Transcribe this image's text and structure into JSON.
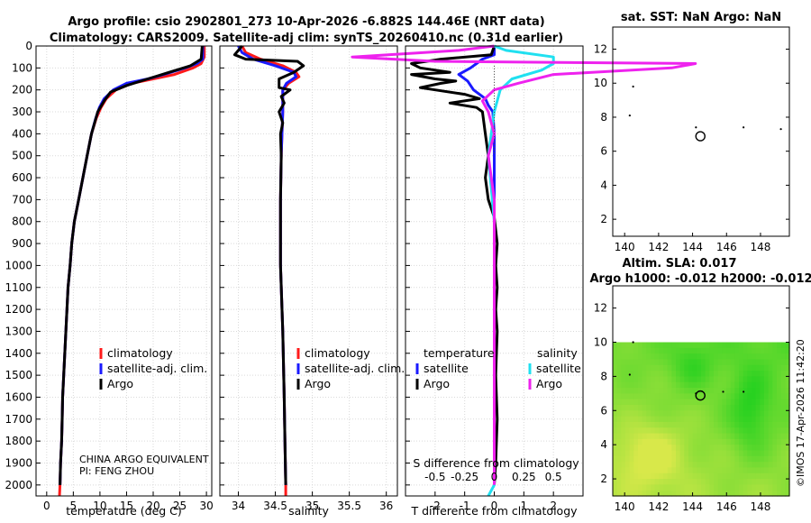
{
  "header": {
    "title_line1": "Argo profile: csio 2902801_273 10-Apr-2026 -6.882S 144.46E (NRT data)",
    "title_line2": "Climatology: CARS2009. Satellite-adj clim: synTS_20260410.nc (0.31d earlier)"
  },
  "legend": {
    "climatology": "climatology",
    "satellite_adj": "satellite-adj. clim.",
    "argo": "Argo",
    "diff_temperature_head": "temperature",
    "diff_salinity_head": "salinity",
    "satellite": "satellite"
  },
  "credits": {
    "line1": "CHINA ARGO EQUIVALENT",
    "line2": "PI: FENG ZHOU",
    "imos": "©IMOS 17-Apr-2026 11:42:20"
  },
  "maps": {
    "sst_title": "sat. SST: NaN Argo: NaN",
    "sla_title1": "Altim. SLA: 0.017",
    "sla_title2": "Argo h1000: -0.012 h2000: -0.012"
  },
  "colors": {
    "climatology": "#ff1a1a",
    "satellite_adj": "#1a1aff",
    "argo": "#000000",
    "t_satellite": "#1a1aff",
    "s_satellite": "#20e0f0",
    "s_argo": "#ee22ee",
    "sla_green": "#1ed01e",
    "sla_yellow": "#d8e84a"
  },
  "chart_data": [
    {
      "id": "temperature",
      "type": "line",
      "xlabel": "temperature (deg C)",
      "ylabel": "",
      "xlim": [
        -2,
        31
      ],
      "ylim": [
        2050,
        0
      ],
      "xticks": [
        0,
        5,
        10,
        15,
        20,
        25,
        30
      ],
      "yticks": [
        0,
        100,
        200,
        300,
        400,
        500,
        600,
        700,
        800,
        900,
        1000,
        1100,
        1200,
        1300,
        1400,
        1500,
        1600,
        1700,
        1800,
        1900,
        2000
      ],
      "grid": true,
      "series": [
        {
          "name": "climatology",
          "color_key": "climatology",
          "points": [
            [
              29.6,
              0
            ],
            [
              29.6,
              50
            ],
            [
              29.0,
              80
            ],
            [
              27.5,
              100
            ],
            [
              24,
              130
            ],
            [
              20,
              150
            ],
            [
              16,
              170
            ],
            [
              13,
              200
            ],
            [
              11.2,
              240
            ],
            [
              10.2,
              280
            ],
            [
              9.3,
              330
            ],
            [
              8.4,
              400
            ],
            [
              7.6,
              500
            ],
            [
              6.8,
              600
            ],
            [
              6.0,
              700
            ],
            [
              5.2,
              800
            ],
            [
              4.7,
              900
            ],
            [
              4.4,
              1000
            ],
            [
              4.0,
              1100
            ],
            [
              3.8,
              1200
            ],
            [
              3.6,
              1300
            ],
            [
              3.4,
              1400
            ],
            [
              3.2,
              1500
            ],
            [
              3.0,
              1600
            ],
            [
              2.9,
              1700
            ],
            [
              2.8,
              1800
            ],
            [
              2.6,
              1900
            ],
            [
              2.5,
              2000
            ],
            [
              2.4,
              2050
            ]
          ]
        },
        {
          "name": "satellite-adj. clim.",
          "color_key": "satellite_adj",
          "points": [
            [
              29.3,
              0
            ],
            [
              29.3,
              60
            ],
            [
              28.2,
              80
            ],
            [
              26.0,
              100
            ],
            [
              22,
              130
            ],
            [
              19,
              150
            ],
            [
              15,
              170
            ],
            [
              12.5,
              200
            ],
            [
              10.8,
              240
            ],
            [
              9.9,
              280
            ],
            [
              9.2,
              330
            ],
            [
              8.4,
              400
            ],
            [
              7.6,
              500
            ],
            [
              6.8,
              600
            ],
            [
              6.0,
              700
            ],
            [
              5.2,
              800
            ],
            [
              4.7,
              900
            ],
            [
              4.4,
              1000
            ],
            [
              4.0,
              1100
            ],
            [
              3.8,
              1200
            ],
            [
              3.6,
              1300
            ],
            [
              3.4,
              1400
            ],
            [
              3.2,
              1500
            ],
            [
              3.0,
              1600
            ],
            [
              2.9,
              1700
            ],
            [
              2.8,
              1800
            ],
            [
              2.6,
              1900
            ],
            [
              2.5,
              2000
            ]
          ]
        },
        {
          "name": "Argo",
          "color_key": "argo",
          "points": [
            [
              29.2,
              0
            ],
            [
              29.0,
              60
            ],
            [
              27.0,
              90
            ],
            [
              23,
              120
            ],
            [
              19,
              150
            ],
            [
              15,
              180
            ],
            [
              12,
              210
            ],
            [
              10.8,
              250
            ],
            [
              9.6,
              300
            ],
            [
              8.4,
              400
            ],
            [
              7.6,
              500
            ],
            [
              6.8,
              600
            ],
            [
              6.0,
              700
            ],
            [
              5.2,
              800
            ],
            [
              4.7,
              900
            ],
            [
              4.4,
              1000
            ],
            [
              4.0,
              1100
            ],
            [
              3.8,
              1200
            ],
            [
              3.6,
              1300
            ],
            [
              3.4,
              1400
            ],
            [
              3.2,
              1500
            ],
            [
              3.0,
              1600
            ],
            [
              2.9,
              1700
            ],
            [
              2.8,
              1800
            ],
            [
              2.6,
              1900
            ],
            [
              2.5,
              2000
            ]
          ]
        }
      ]
    },
    {
      "id": "salinity",
      "type": "line",
      "xlabel": "salinity",
      "xlim": [
        33.75,
        36.15
      ],
      "ylim": [
        2050,
        0
      ],
      "xticks": [
        34,
        34.5,
        35,
        35.5,
        36
      ],
      "xtick_labels": [
        "34",
        "34.5",
        "35",
        "35.5",
        "36"
      ],
      "grid": true,
      "series": [
        {
          "name": "climatology",
          "color_key": "climatology",
          "points": [
            [
              34.05,
              0
            ],
            [
              34.1,
              30
            ],
            [
              34.3,
              60
            ],
            [
              34.6,
              90
            ],
            [
              34.78,
              120
            ],
            [
              34.82,
              140
            ],
            [
              34.68,
              170
            ],
            [
              34.6,
              200
            ],
            [
              34.6,
              300
            ],
            [
              34.58,
              500
            ],
            [
              34.57,
              700
            ],
            [
              34.57,
              1000
            ],
            [
              34.6,
              1300
            ],
            [
              34.62,
              1600
            ],
            [
              34.63,
              1800
            ],
            [
              34.64,
              2000
            ],
            [
              34.64,
              2050
            ]
          ]
        },
        {
          "name": "satellite-adj. clim.",
          "color_key": "satellite_adj",
          "points": [
            [
              34.0,
              0
            ],
            [
              34.05,
              30
            ],
            [
              34.2,
              60
            ],
            [
              34.5,
              90
            ],
            [
              34.75,
              120
            ],
            [
              34.78,
              140
            ],
            [
              34.65,
              170
            ],
            [
              34.6,
              200
            ],
            [
              34.6,
              300
            ],
            [
              34.58,
              500
            ],
            [
              34.57,
              700
            ],
            [
              34.57,
              1000
            ],
            [
              34.6,
              1300
            ],
            [
              34.62,
              1600
            ],
            [
              34.63,
              1800
            ],
            [
              34.64,
              2000
            ]
          ]
        },
        {
          "name": "Argo",
          "color_key": "argo",
          "points": [
            [
              34.05,
              0
            ],
            [
              34.0,
              20
            ],
            [
              33.95,
              40
            ],
            [
              34.1,
              60
            ],
            [
              34.8,
              70
            ],
            [
              34.88,
              90
            ],
            [
              34.75,
              120
            ],
            [
              34.55,
              150
            ],
            [
              34.55,
              190
            ],
            [
              34.7,
              200
            ],
            [
              34.58,
              230
            ],
            [
              34.62,
              260
            ],
            [
              34.55,
              300
            ],
            [
              34.6,
              350
            ],
            [
              34.57,
              400
            ],
            [
              34.58,
              500
            ],
            [
              34.57,
              700
            ],
            [
              34.57,
              1000
            ],
            [
              34.6,
              1300
            ],
            [
              34.62,
              1600
            ],
            [
              34.63,
              1800
            ],
            [
              34.64,
              2000
            ]
          ]
        }
      ]
    },
    {
      "id": "difference",
      "type": "line",
      "xlabel": "T difference from climatology",
      "x2label": "S difference from climatology",
      "xlim": [
        -3,
        3
      ],
      "ylim": [
        2050,
        0
      ],
      "xticks": [
        -2,
        -1,
        0,
        1,
        2
      ],
      "x2ticks": [
        -0.5,
        -0.25,
        0,
        0.25,
        0.5
      ],
      "x2tick_labels": [
        "-0.5",
        "-0.25",
        "0",
        "0.25",
        "0.5"
      ],
      "grid": true,
      "series": [
        {
          "name": "temperature satellite",
          "color_key": "t_satellite",
          "points": [
            [
              0,
              0
            ],
            [
              0,
              40
            ],
            [
              -0.4,
              60
            ],
            [
              -0.6,
              80
            ],
            [
              -0.8,
              100
            ],
            [
              -1.2,
              130
            ],
            [
              -0.9,
              160
            ],
            [
              -0.7,
              200
            ],
            [
              -0.3,
              240
            ],
            [
              -0.2,
              270
            ],
            [
              -0.05,
              300
            ],
            [
              0,
              400
            ],
            [
              0,
              2000
            ]
          ]
        },
        {
          "name": "temperature Argo",
          "color_key": "argo",
          "points": [
            [
              0,
              0
            ],
            [
              -0.1,
              40
            ],
            [
              -1.8,
              60
            ],
            [
              -2.8,
              80
            ],
            [
              -2.5,
              100
            ],
            [
              -1.5,
              120
            ],
            [
              -2.8,
              130
            ],
            [
              -2.0,
              150
            ],
            [
              -1.3,
              160
            ],
            [
              -1.8,
              170
            ],
            [
              -2.5,
              190
            ],
            [
              -1.0,
              220
            ],
            [
              -0.5,
              240
            ],
            [
              -1.5,
              260
            ],
            [
              -0.6,
              280
            ],
            [
              -0.4,
              300
            ],
            [
              -0.3,
              400
            ],
            [
              -0.2,
              500
            ],
            [
              -0.3,
              600
            ],
            [
              -0.2,
              700
            ],
            [
              0,
              780
            ],
            [
              0.1,
              900
            ],
            [
              0.05,
              1000
            ],
            [
              0.1,
              1100
            ],
            [
              0.05,
              1200
            ],
            [
              0.1,
              1300
            ],
            [
              0.05,
              1500
            ],
            [
              0.1,
              1700
            ],
            [
              0.05,
              1900
            ],
            [
              0,
              2000
            ]
          ]
        },
        {
          "name": "salinity satellite",
          "color_key": "s_satellite",
          "points": [
            [
              0,
              0
            ],
            [
              0.1,
              20
            ],
            [
              0.5,
              50
            ],
            [
              0.5,
              80
            ],
            [
              0.4,
              110
            ],
            [
              0.15,
              150
            ],
            [
              0.05,
              200
            ],
            [
              0,
              300
            ],
            [
              -0.05,
              500
            ],
            [
              0,
              800
            ],
            [
              0,
              1500
            ],
            [
              0,
              2000
            ],
            [
              -0.05,
              2050
            ]
          ]
        },
        {
          "name": "salinity Argo",
          "color_key": "s_argo",
          "points": [
            [
              0,
              0
            ],
            [
              -0.3,
              20
            ],
            [
              -1.2,
              50
            ],
            [
              -0.5,
              70
            ],
            [
              1.7,
              80
            ],
            [
              1.5,
              100
            ],
            [
              0.5,
              130
            ],
            [
              0.2,
              170
            ],
            [
              0,
              200
            ],
            [
              -0.1,
              250
            ],
            [
              -0.05,
              300
            ],
            [
              0,
              400
            ],
            [
              -0.05,
              500
            ],
            [
              0,
              700
            ],
            [
              0,
              1000
            ],
            [
              0,
              1500
            ],
            [
              0,
              2000
            ]
          ]
        }
      ]
    },
    {
      "id": "sst_map",
      "type": "scatter",
      "title": "sat. SST: NaN Argo: NaN",
      "xlim": [
        139.3,
        149.7
      ],
      "ylim": [
        1,
        13.3
      ],
      "xticks": [
        140,
        142,
        144,
        146,
        148
      ],
      "yticks": [
        2,
        4,
        6,
        8,
        10,
        12
      ],
      "points": [
        [
          140.5,
          9.8
        ],
        [
          140.3,
          8.1
        ],
        [
          144.2,
          7.4
        ],
        [
          147.0,
          7.4
        ],
        [
          149.2,
          7.3
        ]
      ],
      "argo_position": [
        144.46,
        6.88
      ]
    },
    {
      "id": "sla_map",
      "type": "heatmap",
      "title": "Altim. SLA: 0.017 | Argo h1000: -0.012 h2000: -0.012",
      "xlim": [
        139.3,
        149.7
      ],
      "ylim": [
        1,
        13.3
      ],
      "data_ylim": [
        1,
        10
      ],
      "xticks": [
        140,
        142,
        144,
        146,
        148
      ],
      "yticks": [
        2,
        4,
        6,
        8,
        10,
        12
      ],
      "points": [
        [
          140.5,
          10.0
        ],
        [
          140.3,
          8.1
        ],
        [
          144.2,
          7.0
        ],
        [
          145.8,
          7.1
        ],
        [
          147.0,
          7.1
        ]
      ],
      "argo_position": [
        144.46,
        6.88
      ]
    }
  ]
}
